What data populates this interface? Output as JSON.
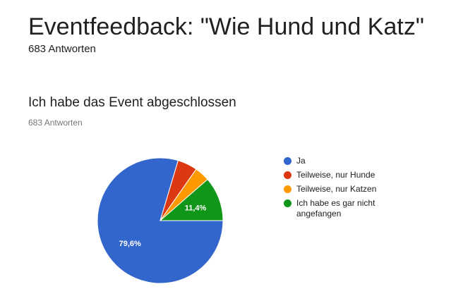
{
  "header": {
    "title": "Eventfeedback: \"Wie Hund und Katz\"",
    "response_count": "683 Antworten"
  },
  "question": {
    "title": "Ich habe das Event abgeschlossen",
    "response_count": "683 Antworten"
  },
  "chart_data": {
    "type": "pie",
    "title": "Ich habe das Event abgeschlossen",
    "slices": [
      {
        "label": "Ja",
        "value": 79.6,
        "color": "#3366cc",
        "data_label": "79,6%"
      },
      {
        "label": "Teilweise, nur Hunde",
        "value": 5.1,
        "color": "#dc3912",
        "data_label": ""
      },
      {
        "label": "Teilweise, nur Katzen",
        "value": 3.9,
        "color": "#ff9900",
        "data_label": ""
      },
      {
        "label": "Ich habe es gar nicht angefangen",
        "value": 11.4,
        "color": "#109618",
        "data_label": "11,4%"
      }
    ],
    "legend_position": "right"
  }
}
